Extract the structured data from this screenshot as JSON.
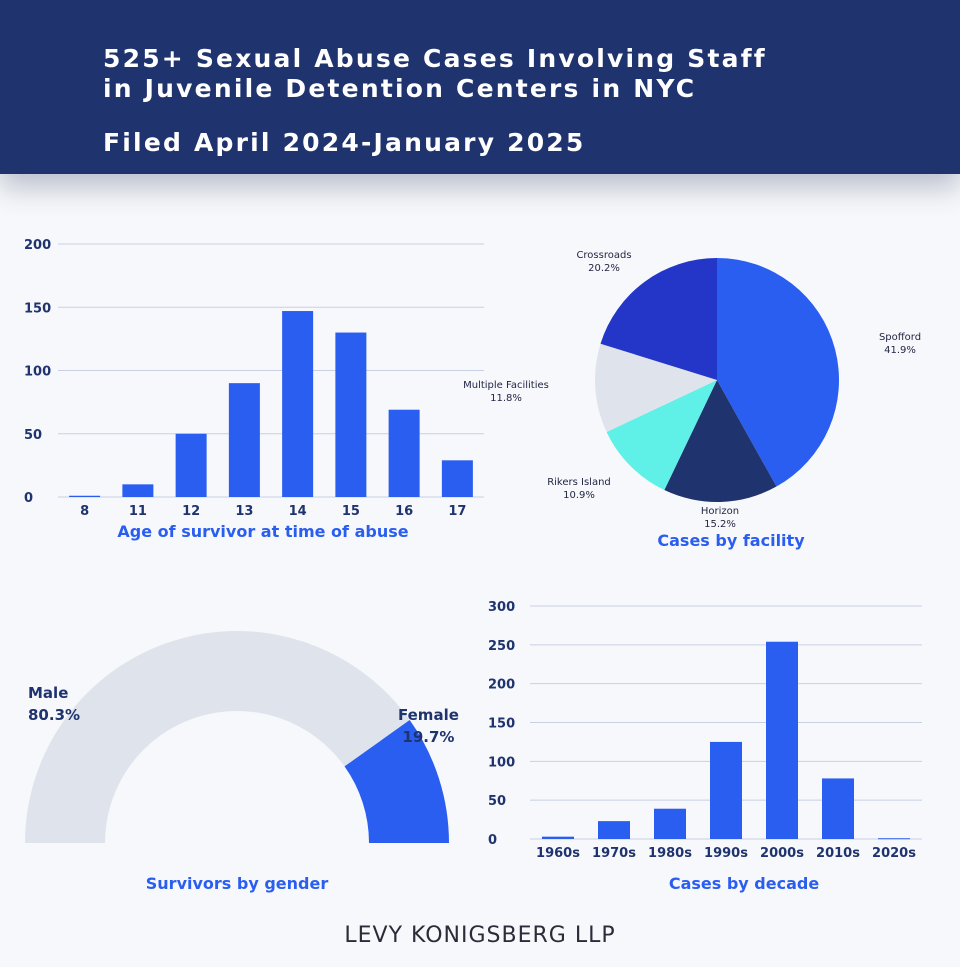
{
  "header": {
    "title_line1": "525+ Sexual Abuse Cases Involving Staff",
    "title_line2": "in Juvenile Detention Centers in NYC",
    "subtitle": "Filed April 2024-January 2025"
  },
  "footer": {
    "firm": "LEVY KONIGSBERG LLP"
  },
  "colors": {
    "primary": "#2a5ef0",
    "navy": "#1f336e",
    "cyan": "#5ff0e8",
    "light": "#dfe4ec",
    "royal": "#2436c8"
  },
  "chart_data": [
    {
      "type": "bar",
      "title": "Age of survivor at time of abuse",
      "categories": [
        "8",
        "11",
        "12",
        "13",
        "14",
        "15",
        "16",
        "17"
      ],
      "values": [
        1,
        10,
        50,
        90,
        147,
        130,
        69,
        29
      ],
      "ylim": [
        0,
        200
      ],
      "yticks": [
        "0",
        "50",
        "100",
        "150",
        "200"
      ],
      "grid": true
    },
    {
      "type": "pie",
      "title": "Cases by facility",
      "slices": [
        {
          "label": "Spofford",
          "pct_label": "41.9%",
          "value": 41.9,
          "color": "#2a5ef0"
        },
        {
          "label": "Horizon",
          "pct_label": "15.2%",
          "value": 15.2,
          "color": "#1f336e"
        },
        {
          "label": "Rikers Island",
          "pct_label": "10.9%",
          "value": 10.9,
          "color": "#5ff0e8"
        },
        {
          "label": "Multiple Facilities",
          "pct_label": "11.8%",
          "value": 11.8,
          "color": "#dfe4ec"
        },
        {
          "label": "Crossroads",
          "pct_label": "20.2%",
          "value": 20.2,
          "color": "#2436c8"
        }
      ]
    },
    {
      "type": "pie",
      "title": "Survivors by gender",
      "slices": [
        {
          "label": "Male",
          "pct_label": "80.3%",
          "value": 80.3,
          "color": "#dfe4ec"
        },
        {
          "label": "Female",
          "pct_label": "19.7%",
          "value": 19.7,
          "color": "#2a5ef0"
        }
      ]
    },
    {
      "type": "bar",
      "title": "Cases by decade",
      "categories": [
        "1960s",
        "1970s",
        "1980s",
        "1990s",
        "2000s",
        "2010s",
        "2020s"
      ],
      "values": [
        3,
        23,
        39,
        125,
        254,
        78,
        1
      ],
      "ylim": [
        0,
        300
      ],
      "yticks": [
        "0",
        "50",
        "100",
        "150",
        "200",
        "250",
        "300"
      ],
      "grid": true
    }
  ]
}
